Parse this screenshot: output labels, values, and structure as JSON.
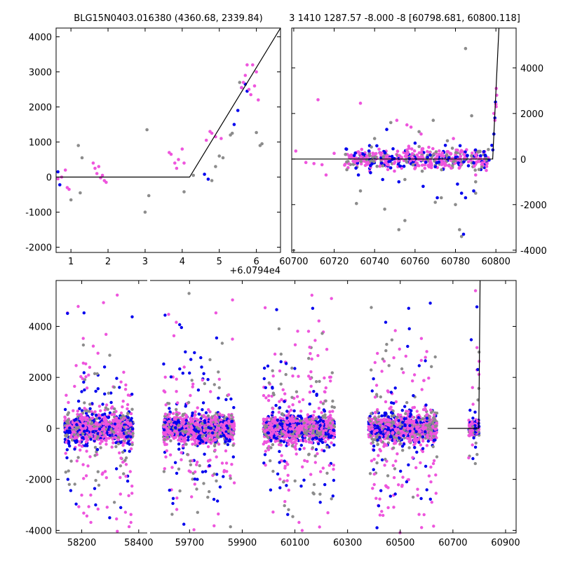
{
  "chart_data": [
    {
      "id": "panel_a",
      "type": "scatter",
      "title": "BLG15N0403.016380 (4360.68, 2339.84)",
      "offset_label": "+6.0794e4",
      "xlim": [
        0.6,
        6.65
      ],
      "ylim": [
        -2150,
        4250
      ],
      "xticks": [
        1,
        2,
        3,
        4,
        5,
        6
      ],
      "yticks": [
        -2000,
        -1000,
        0,
        1000,
        2000,
        3000,
        4000
      ],
      "ytick_side": "left",
      "model_line": [
        [
          0.6,
          0
        ],
        [
          4.2,
          0
        ],
        [
          6.65,
          4250
        ]
      ],
      "series": [
        {
          "name": "gray",
          "color": "#8c8c8c",
          "points": [
            [
              1.0,
              -650
            ],
            [
              1.2,
              900
            ],
            [
              1.25,
              -450
            ],
            [
              1.3,
              550
            ],
            [
              3.0,
              -1000
            ],
            [
              3.05,
              1350
            ],
            [
              3.1,
              -530
            ],
            [
              4.05,
              -420
            ],
            [
              4.3,
              50
            ],
            [
              4.8,
              -100
            ],
            [
              4.9,
              300
            ],
            [
              5.0,
              600
            ],
            [
              5.1,
              550
            ],
            [
              5.3,
              1200
            ],
            [
              5.35,
              1250
            ],
            [
              5.55,
              2700
            ],
            [
              6.0,
              1270
            ],
            [
              6.1,
              900
            ],
            [
              6.15,
              950
            ]
          ]
        },
        {
          "name": "blue",
          "color": "#0000ee",
          "points": [
            [
              0.65,
              150
            ],
            [
              0.7,
              -220
            ],
            [
              4.6,
              80
            ],
            [
              4.7,
              -60
            ],
            [
              5.4,
              1500
            ],
            [
              5.5,
              1900
            ],
            [
              5.6,
              2550
            ],
            [
              5.7,
              2650
            ],
            [
              5.75,
              2450
            ]
          ]
        },
        {
          "name": "magenta",
          "color": "#ee55dd",
          "points": [
            [
              0.65,
              -50
            ],
            [
              0.75,
              0
            ],
            [
              0.85,
              200
            ],
            [
              0.9,
              -300
            ],
            [
              0.95,
              -350
            ],
            [
              1.6,
              400
            ],
            [
              1.65,
              250
            ],
            [
              1.7,
              100
            ],
            [
              1.75,
              300
            ],
            [
              1.8,
              -20
            ],
            [
              1.85,
              50
            ],
            [
              1.9,
              -100
            ],
            [
              1.95,
              -150
            ],
            [
              3.65,
              700
            ],
            [
              3.7,
              650
            ],
            [
              3.8,
              400
            ],
            [
              3.85,
              250
            ],
            [
              3.9,
              500
            ],
            [
              4.0,
              800
            ],
            [
              4.05,
              400
            ],
            [
              4.65,
              1050
            ],
            [
              4.75,
              1300
            ],
            [
              4.8,
              1250
            ],
            [
              4.9,
              1150
            ],
            [
              5.05,
              1100
            ],
            [
              5.6,
              2550
            ],
            [
              5.65,
              2700
            ],
            [
              5.7,
              2900
            ],
            [
              5.75,
              3200
            ],
            [
              5.8,
              2500
            ],
            [
              5.85,
              2350
            ],
            [
              5.9,
              3200
            ],
            [
              5.95,
              2600
            ],
            [
              6.0,
              3000
            ],
            [
              6.05,
              2200
            ]
          ]
        }
      ]
    },
    {
      "id": "panel_b",
      "type": "scatter",
      "title": "3 1410 1287.57 -8.000 -8 [60798.681, 60800.118]",
      "xlim": [
        60699,
        60810
      ],
      "ylim": [
        -4100,
        5750
      ],
      "xticks": [
        60700,
        60720,
        60740,
        60760,
        60780,
        60800
      ],
      "yticks": [
        -4000,
        -2000,
        0,
        2000,
        4000
      ],
      "ytick_side": "right",
      "model_line": [
        [
          60699,
          0
        ],
        [
          60798.4,
          0
        ],
        [
          60801.5,
          5750
        ]
      ],
      "cloud": {
        "x_range": [
          60725,
          60797
        ],
        "y_sigma": 220
      },
      "series": [
        {
          "name": "gray",
          "color": "#8c8c8c",
          "points": [
            [
              60731,
              -1950
            ],
            [
              60733,
              -1400
            ],
            [
              60745,
              -2200
            ],
            [
              60752,
              -3100
            ],
            [
              60755,
              -2700
            ],
            [
              60770,
              -1900
            ],
            [
              60773,
              -1700
            ],
            [
              60782,
              -3100
            ],
            [
              60783,
              -3400
            ],
            [
              60785,
              4850
            ],
            [
              60780,
              -2000
            ],
            [
              60790,
              -1500
            ],
            [
              60788,
              1900
            ],
            [
              60769,
              1700
            ],
            [
              60748,
              1600
            ],
            [
              60762,
              1200
            ],
            [
              60790,
              -1000
            ],
            [
              60755,
              -900
            ],
            [
              60740,
              900
            ],
            [
              60776,
              800
            ]
          ]
        },
        {
          "name": "blue",
          "color": "#0000ee",
          "points": [
            [
              60746,
              1300
            ],
            [
              60771,
              -1700
            ],
            [
              60784,
              -3300
            ],
            [
              60783,
              -1500
            ],
            [
              60785,
              -1700
            ],
            [
              60789,
              -1400
            ],
            [
              60764,
              -1200
            ],
            [
              60752,
              -1000
            ],
            [
              60744,
              -900
            ],
            [
              60760,
              700
            ],
            [
              60775,
              600
            ],
            [
              60781,
              -1100
            ],
            [
              60732,
              -700
            ],
            [
              60738,
              -600
            ],
            [
              60798,
              600
            ],
            [
              60799,
              1100
            ],
            [
              60799.5,
              1800
            ],
            [
              60799.8,
              2500
            ],
            [
              60798.5,
              400
            ]
          ]
        },
        {
          "name": "magenta",
          "color": "#ee55dd",
          "points": [
            [
              60712,
              2600
            ],
            [
              60701,
              350
            ],
            [
              60706,
              -150
            ],
            [
              60710,
              -200
            ],
            [
              60714,
              -250
            ],
            [
              60716,
              -700
            ],
            [
              60720,
              250
            ],
            [
              60728,
              150
            ],
            [
              60733,
              2450
            ],
            [
              60751,
              1700
            ],
            [
              60756,
              1500
            ],
            [
              60758,
              1400
            ],
            [
              60763,
              1100
            ],
            [
              60779,
              900
            ],
            [
              60790,
              -700
            ],
            [
              60799,
              2000
            ],
            [
              60799.5,
              1700
            ],
            [
              60800,
              2400
            ],
            [
              60800.2,
              3100
            ],
            [
              60800.4,
              2800
            ],
            [
              60800.1,
              2300
            ]
          ]
        }
      ]
    },
    {
      "id": "panel_c",
      "type": "scatter",
      "title": "",
      "segments": [
        {
          "xlim": [
            58110,
            58430
          ],
          "xticks": [
            58200,
            58400
          ],
          "clouds": [
            {
              "x_range": [
                58140,
                58380
              ]
            }
          ]
        },
        {
          "xlim": [
            59550,
            60940
          ],
          "xticks": [
            59700,
            59900,
            60100,
            60300,
            60500,
            60700,
            60900
          ],
          "clouds": [
            {
              "x_range": [
                59600,
                59870
              ]
            },
            {
              "x_range": [
                59980,
                60250
              ]
            },
            {
              "x_range": [
                60380,
                60640
              ]
            },
            {
              "x_range": [
                60760,
                60800
              ]
            }
          ]
        }
      ],
      "ylim": [
        -4100,
        5800
      ],
      "yticks": [
        -4000,
        -2000,
        0,
        2000,
        4000
      ],
      "ytick_side": "left",
      "model_line": [
        [
          60680,
          0
        ],
        [
          60798.4,
          0
        ],
        [
          60803,
          5800
        ]
      ],
      "series_colors": {
        "gray": "#8c8c8c",
        "blue": "#0000ee",
        "magenta": "#ee55dd"
      },
      "model_color": "#000000"
    }
  ]
}
